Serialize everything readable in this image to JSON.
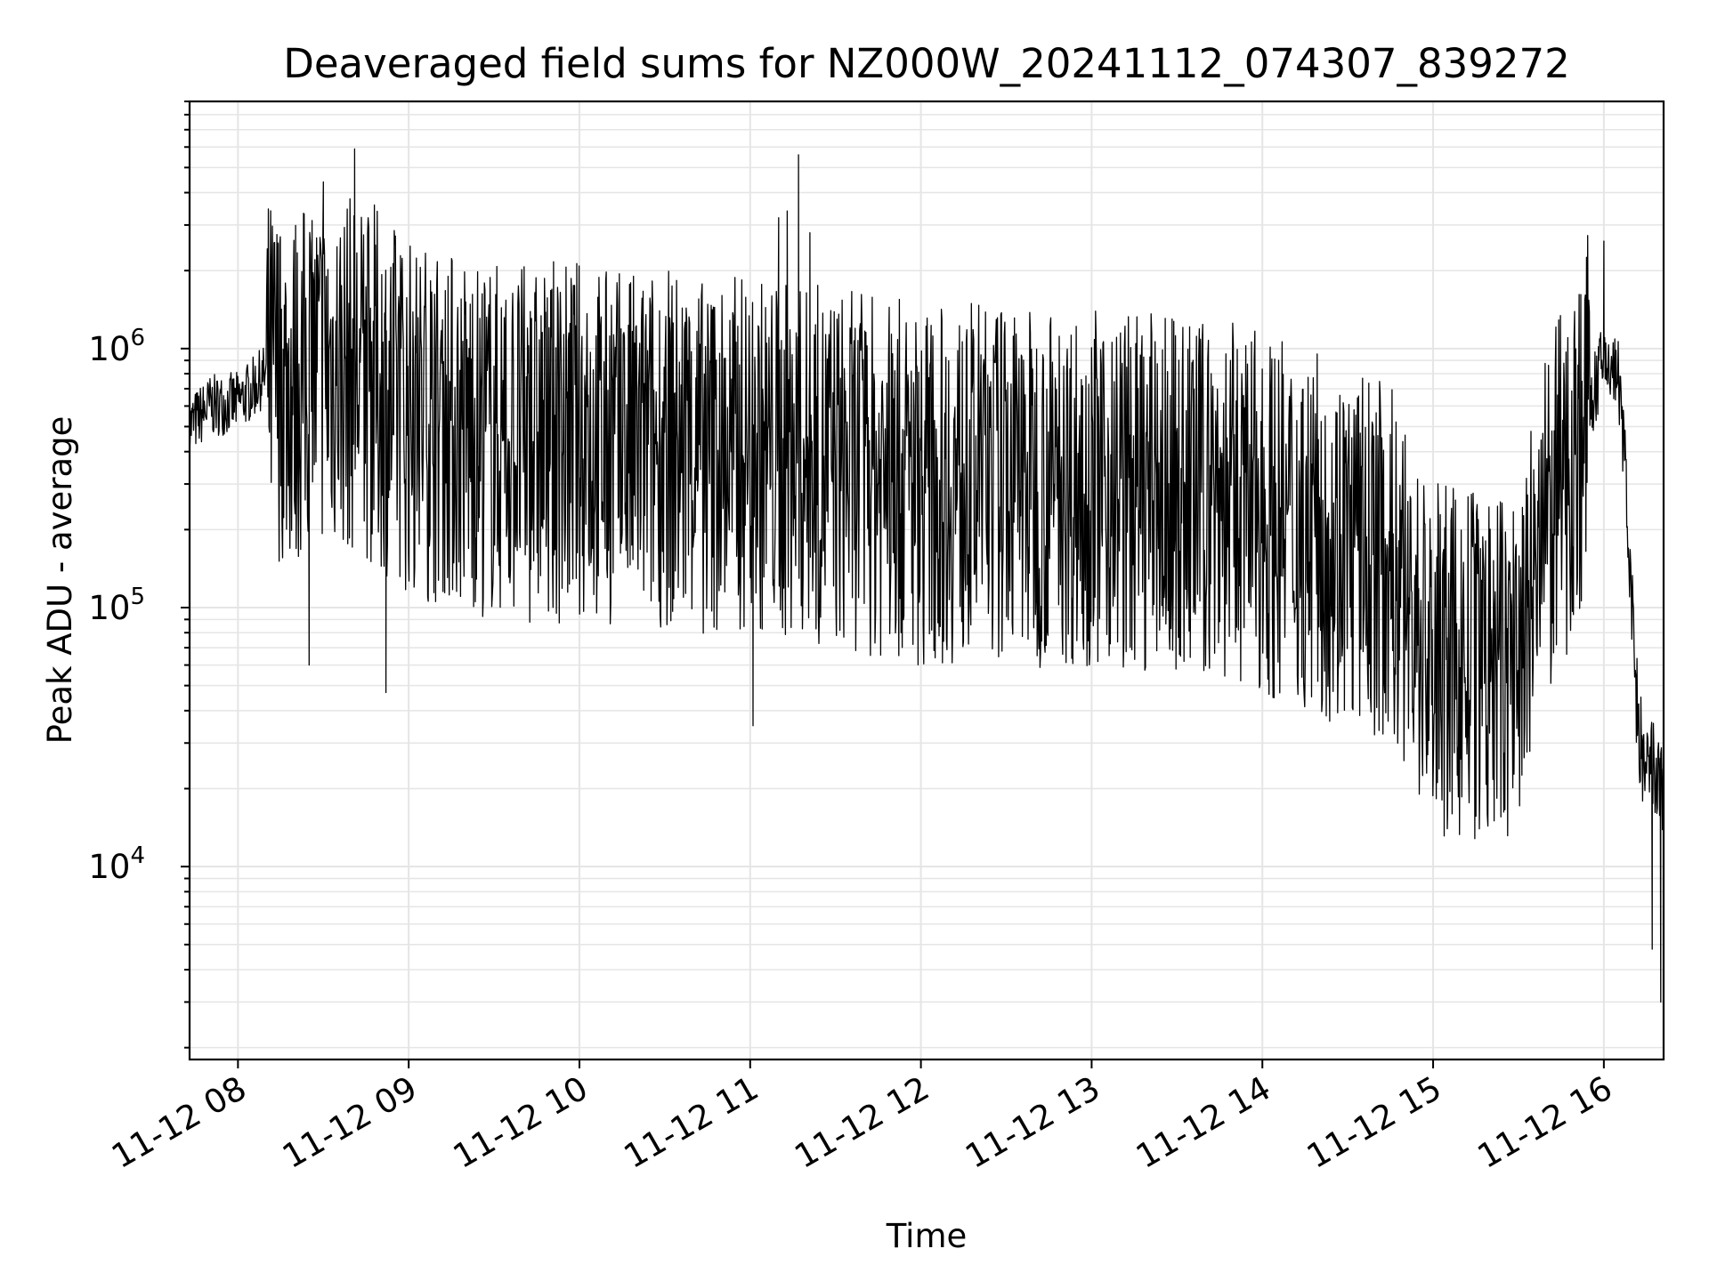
{
  "chart_data": {
    "type": "line",
    "title": "Deaveraged field sums for NZ000W_20241112_074307_839272",
    "xlabel": "Time",
    "ylabel": "Peak ADU - average",
    "y_scale": "log",
    "grid": true,
    "xlim": [
      "11-12 07:43",
      "11-12 16:21"
    ],
    "ylim": [
      1800,
      9000000
    ],
    "x_ticks": [
      "11-12 08",
      "11-12 09",
      "11-12 10",
      "11-12 11",
      "11-12 12",
      "11-12 13",
      "11-12 14",
      "11-12 15",
      "11-12 16"
    ],
    "y_ticks": [
      {
        "base": "10",
        "exp": "4"
      },
      {
        "base": "10",
        "exp": "5"
      },
      {
        "base": "10",
        "exp": "6"
      }
    ],
    "series": [
      {
        "color": "#000000",
        "x": [
          "11-12 07:43",
          "11-12 07:50",
          "11-12 08:00",
          "11-12 08:05",
          "11-12 08:10",
          "11-12 08:20",
          "11-12 08:30",
          "11-12 08:40",
          "11-12 08:50",
          "11-12 09:00",
          "11-12 09:15",
          "11-12 09:30",
          "11-12 09:45",
          "11-12 10:00",
          "11-12 10:15",
          "11-12 10:30",
          "11-12 10:45",
          "11-12 11:00",
          "11-12 11:15",
          "11-12 11:30",
          "11-12 11:45",
          "11-12 12:00",
          "11-12 12:15",
          "11-12 12:30",
          "11-12 12:45",
          "11-12 13:00",
          "11-12 13:15",
          "11-12 13:30",
          "11-12 13:45",
          "11-12 14:00",
          "11-12 14:15",
          "11-12 14:30",
          "11-12 14:45",
          "11-12 15:00",
          "11-12 15:10",
          "11-12 15:20",
          "11-12 15:30",
          "11-12 15:40",
          "11-12 15:50",
          "11-12 16:00",
          "11-12 16:05",
          "11-12 16:08",
          "11-12 16:11",
          "11-12 16:14",
          "11-12 16:17",
          "11-12 16:20"
        ],
        "y": [
          500000,
          600000,
          620000,
          700000,
          800000,
          700000,
          850000,
          800000,
          700000,
          550000,
          500000,
          450000,
          420000,
          450000,
          400000,
          420000,
          380000,
          400000,
          360000,
          350000,
          320000,
          300000,
          300000,
          310000,
          290000,
          300000,
          280000,
          270000,
          260000,
          230000,
          200000,
          170000,
          150000,
          60000,
          60000,
          55000,
          60000,
          200000,
          400000,
          900000,
          800000,
          300000,
          50000,
          22000,
          24000,
          20000
        ],
        "spikes": [
          {
            "x": "11-12 08:30",
            "y": 4400000
          },
          {
            "x": "11-12 08:41",
            "y": 5900000
          },
          {
            "x": "11-12 08:25",
            "y": 60000
          },
          {
            "x": "11-12 08:52",
            "y": 47000
          },
          {
            "x": "11-12 11:10",
            "y": 3200000
          },
          {
            "x": "11-12 11:13",
            "y": 3400000
          },
          {
            "x": "11-12 11:17",
            "y": 5600000
          },
          {
            "x": "11-12 11:21",
            "y": 2800000
          },
          {
            "x": "11-12 11:01",
            "y": 35000
          },
          {
            "x": "11-12 15:05",
            "y": 14000
          },
          {
            "x": "11-12 16:00",
            "y": 2600000
          },
          {
            "x": "11-12 16:17",
            "y": 4800
          },
          {
            "x": "11-12 16:20",
            "y": 3000
          }
        ]
      }
    ]
  }
}
